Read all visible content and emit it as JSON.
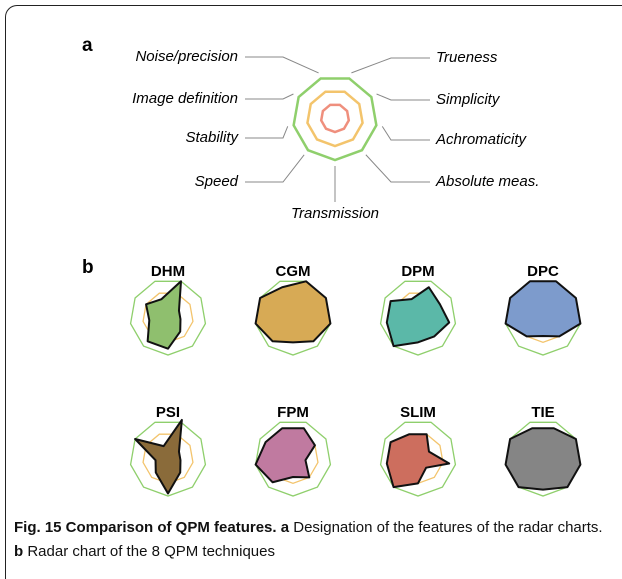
{
  "chart_data": {
    "type": "radar",
    "panel_a_label": "a",
    "panel_b_label": "b",
    "axes": [
      "Trueness",
      "Simplicity",
      "Achromaticity",
      "Absolute meas.",
      "Transmission",
      "Speed",
      "Stability",
      "Image definition",
      "Noise/precision"
    ],
    "rlim": [
      0,
      3
    ],
    "rticks": [
      1,
      2,
      3
    ],
    "ring_colors": [
      "#ef8f7d",
      "#f3c46c",
      "#8fcf6c"
    ],
    "series": [
      {
        "name": "DHM",
        "color": "#8fbf6e",
        "values": [
          3,
          1,
          1,
          1.5,
          2.5,
          2.5,
          1.5,
          2,
          1.5
        ]
      },
      {
        "name": "CGM",
        "color": "#d7aa55",
        "values": [
          3,
          3,
          3,
          2.5,
          2,
          2.5,
          3,
          3,
          2.5
        ]
      },
      {
        "name": "DPM",
        "color": "#5bb8a8",
        "values": [
          2.5,
          2,
          2.5,
          2,
          2,
          3,
          2.5,
          2.5,
          1.5
        ]
      },
      {
        "name": "DPC",
        "color": "#7d9bcc",
        "values": [
          3,
          3,
          3,
          2,
          1.5,
          2,
          3,
          3,
          3
        ]
      },
      {
        "name": "PSI",
        "color": "#8a6b3a",
        "values": [
          3.2,
          1,
          1,
          1.5,
          2.8,
          1.5,
          1,
          3,
          1
        ]
      },
      {
        "name": "FPM",
        "color": "#c07aa0",
        "values": [
          2.5,
          2,
          1,
          2,
          1.5,
          2.5,
          3,
          2.5,
          2.5
        ]
      },
      {
        "name": "SLIM",
        "color": "#cd6e5e",
        "values": [
          2,
          1,
          2.5,
          1,
          2,
          3,
          2.5,
          2.5,
          2
        ]
      },
      {
        "name": "TIE",
        "color": "#858585",
        "values": [
          2.5,
          3,
          3,
          3,
          2.5,
          3,
          3,
          3,
          2.5
        ]
      }
    ]
  },
  "caption": {
    "label": "Fig. 15 Comparison of QPM features.",
    "a": "a",
    "a_text": "Designation of the features of the radar charts.",
    "b": "b",
    "b_text": "Radar chart of the 8 QPM techniques"
  }
}
